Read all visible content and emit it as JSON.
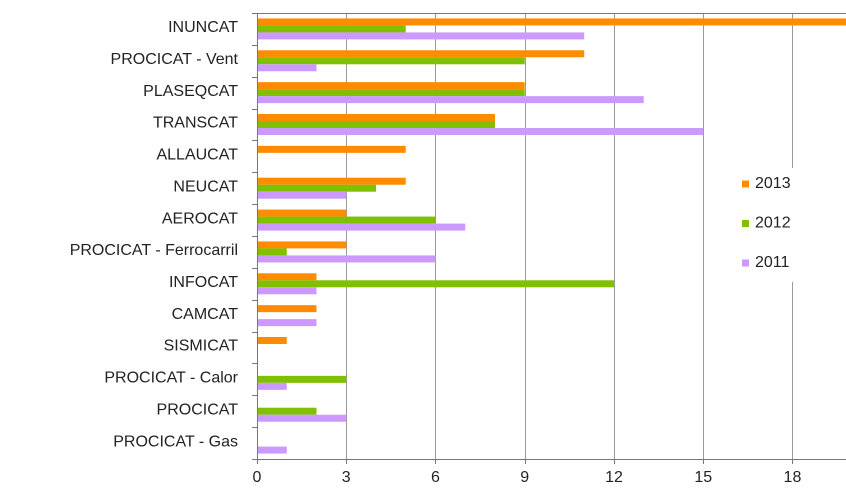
{
  "chart_data": {
    "type": "bar",
    "orientation": "horizontal",
    "title": "",
    "xlabel": "",
    "ylabel": "",
    "categories": [
      "INUNCAT",
      "PROCICAT - Vent",
      "PLASEQCAT",
      "TRANSCAT",
      "ALLAUCAT",
      "NEUCAT",
      "AEROCAT",
      "PROCICAT - Ferrocarril",
      "INFOCAT",
      "CAMCAT",
      "SISMICAT",
      "PROCICAT - Calor",
      "PROCICAT",
      "PROCICAT - Gas"
    ],
    "series": [
      {
        "name": "2013",
        "color": "#ff8c00",
        "values": [
          20,
          11,
          9,
          8,
          5,
          5,
          3,
          3,
          2,
          2,
          1,
          0,
          0,
          0
        ]
      },
      {
        "name": "2012",
        "color": "#80c000",
        "values": [
          5,
          9,
          9,
          8,
          0,
          4,
          6,
          1,
          12,
          0,
          0,
          3,
          2,
          0
        ]
      },
      {
        "name": "2011",
        "color": "#cc99ff",
        "values": [
          11,
          2,
          13,
          15,
          0,
          3,
          7,
          6,
          2,
          2,
          0,
          1,
          3,
          1
        ]
      }
    ],
    "xlim": [
      0,
      19.8
    ],
    "xticks": [
      "0",
      "3",
      "6",
      "9",
      "12",
      "15",
      "18"
    ],
    "xtick_values": [
      0,
      3,
      6,
      9,
      12,
      15,
      18
    ],
    "grid": "vertical",
    "legend_position": "right"
  }
}
